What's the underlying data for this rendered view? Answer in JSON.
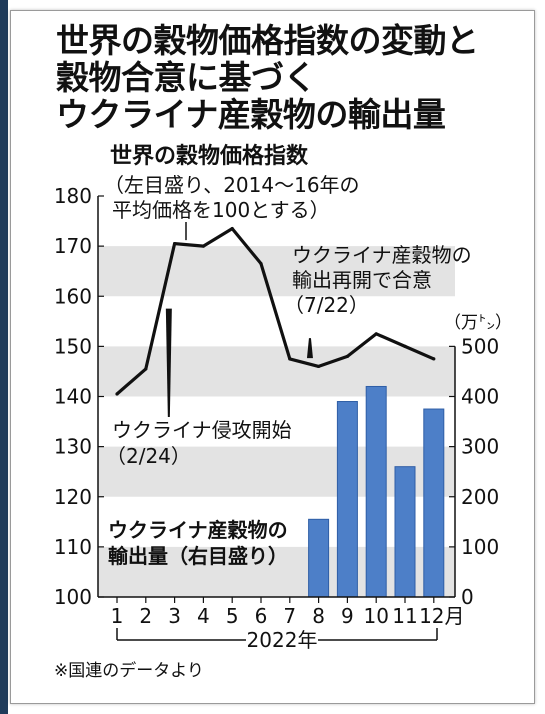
{
  "title_lines": [
    "世界の穀物価格指数の変動と",
    "穀物合意に基づく",
    "ウクライナ産穀物の輸出量"
  ],
  "footnote": "※国連のデータより",
  "colors": {
    "line": "#111111",
    "bar": "#4d7fc8",
    "bar_edge": "#2f5ea6",
    "band": "#e3e3e3"
  },
  "annotations": {
    "index_title": "世界の穀物価格指数",
    "index_note_1": "（左目盛り、2014～16年の",
    "index_note_2": "平均価格を100とする）",
    "deal_1": "ウクライナ産穀物の",
    "deal_2": "輸出再開で合意",
    "deal_3": "（7/22）",
    "invasion_1": "ウクライナ侵攻開始",
    "invasion_2": "（2/24）",
    "export_1": "ウクライナ産穀物の",
    "export_2": "輸出量（右目盛り）",
    "right_unit": "（万㌧）",
    "year": "2022年"
  },
  "chart_data": {
    "type": "line+bar",
    "x": [
      "1",
      "2",
      "3",
      "4",
      "5",
      "6",
      "7",
      "8",
      "9",
      "10",
      "11",
      "12月"
    ],
    "series": [
      {
        "name": "世界の穀物価格指数",
        "axis": "left",
        "type": "line",
        "values": [
          140.5,
          145.5,
          170.5,
          170,
          173.5,
          166.5,
          147.5,
          146,
          148,
          152.5,
          150,
          147.5
        ]
      },
      {
        "name": "ウクライナ産穀物の輸出量",
        "axis": "right",
        "type": "bar",
        "values": [
          null,
          null,
          null,
          null,
          null,
          null,
          null,
          155,
          390,
          420,
          260,
          375
        ]
      }
    ],
    "left_axis": {
      "ticks": [
        100,
        110,
        120,
        130,
        140,
        150,
        160,
        170,
        180
      ],
      "ylim": [
        100,
        180
      ]
    },
    "right_axis": {
      "unit": "（万㌧）",
      "ticks": [
        0,
        100,
        200,
        300,
        400,
        500
      ],
      "ylim": [
        0,
        500
      ]
    },
    "bands": [
      [
        100,
        110
      ],
      [
        120,
        130
      ],
      [
        140,
        150
      ],
      [
        160,
        170
      ]
    ],
    "events": [
      {
        "label": "ウクライナ侵攻開始（2/24）",
        "x_value": 2.8
      },
      {
        "label": "輸出再開で合意（7/22）",
        "x_value": 7.7
      }
    ]
  }
}
